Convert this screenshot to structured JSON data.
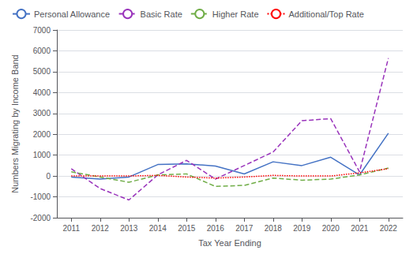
{
  "chart_data": {
    "type": "line",
    "x": [
      2011,
      2012,
      2013,
      2014,
      2015,
      2016,
      2017,
      2018,
      2019,
      2020,
      2021,
      2022
    ],
    "series": [
      {
        "name": "Personal Allowance",
        "color": "#4472c4",
        "line_style": "solid",
        "values": [
          -50,
          -150,
          -50,
          550,
          580,
          480,
          100,
          680,
          500,
          900,
          50,
          2050
        ]
      },
      {
        "name": "Basic Rate",
        "color": "#9933bb",
        "line_style": "dashed",
        "values": [
          350,
          -600,
          -1150,
          50,
          750,
          -150,
          500,
          1150,
          2650,
          2750,
          200,
          5650
        ]
      },
      {
        "name": "Higher Rate",
        "color": "#70ad47",
        "line_style": "dashed",
        "values": [
          200,
          -50,
          -300,
          50,
          100,
          -500,
          -450,
          -100,
          -200,
          -150,
          50,
          380
        ]
      },
      {
        "name": "Additional/Top Rate",
        "color": "#ff0000",
        "line_style": "dotted",
        "values": [
          0,
          0,
          0,
          30,
          -50,
          -100,
          -50,
          30,
          0,
          0,
          150,
          350
        ]
      }
    ],
    "xlabel": "Tax Year Ending",
    "ylabel": "Numbers Migrating by Income Band",
    "xlim": [
      2010.5,
      2022.5
    ],
    "xticks": [
      2011,
      2012,
      2013,
      2014,
      2015,
      2016,
      2017,
      2018,
      2019,
      2020,
      2021,
      2022
    ],
    "ylim": [
      -2000,
      7000
    ],
    "yticks": [
      -2000,
      -1000,
      0,
      1000,
      2000,
      3000,
      4000,
      5000,
      6000,
      7000
    ],
    "grid": true,
    "legend": "top"
  }
}
